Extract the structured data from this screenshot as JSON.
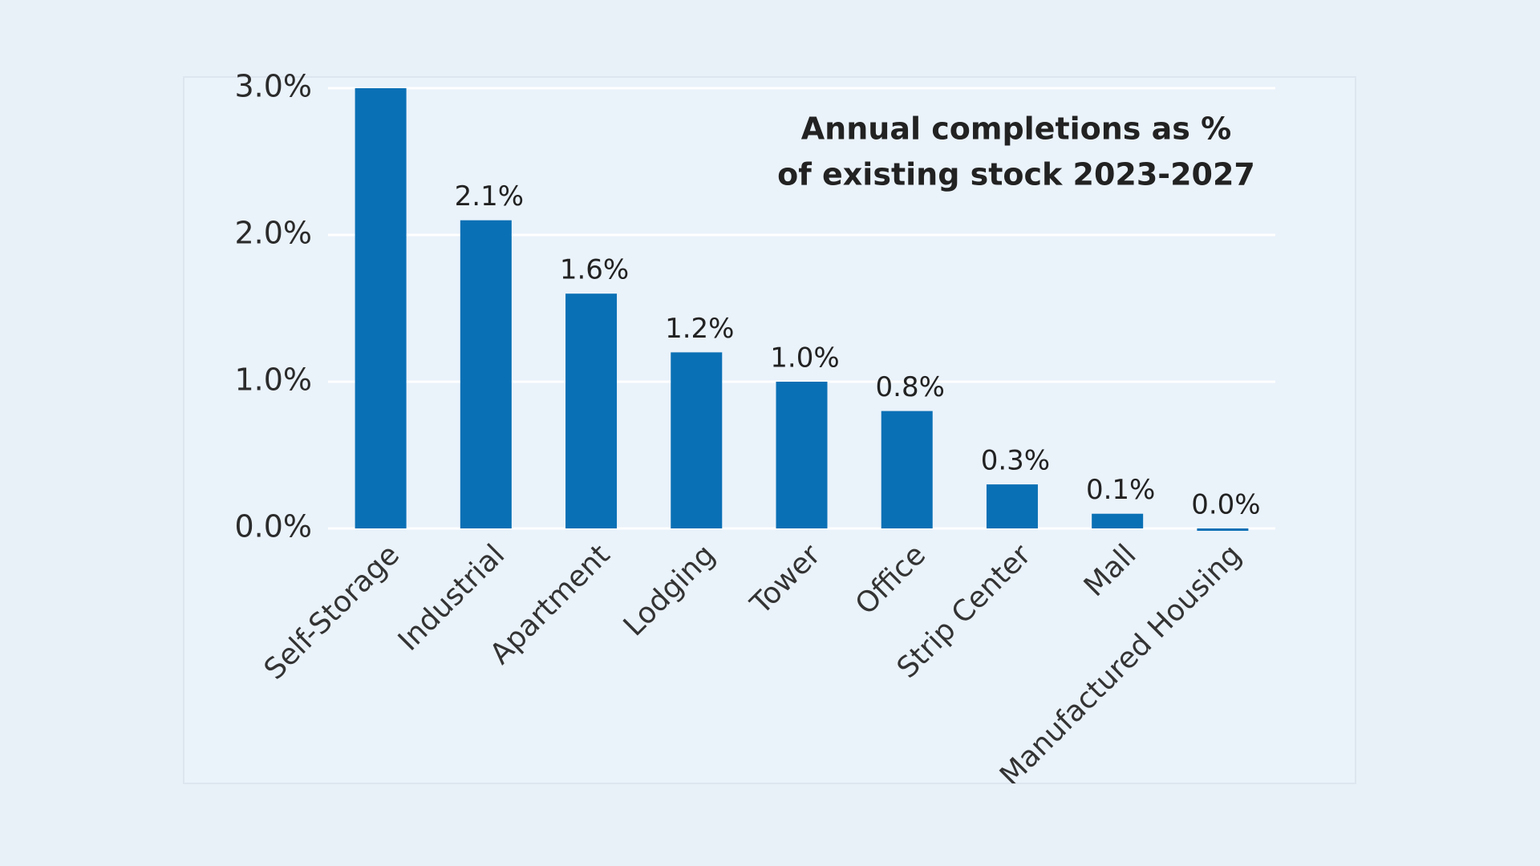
{
  "chart_data": {
    "type": "bar",
    "title": [
      "Annual completions as %",
      "of existing stock 2023-2027"
    ],
    "categories": [
      "Self-Storage",
      "Industrial",
      "Apartment",
      "Lodging",
      "Tower",
      "Office",
      "Strip Center",
      "Mall",
      "Manufactured Housing"
    ],
    "values": [
      3.0,
      2.1,
      1.6,
      1.2,
      1.0,
      0.8,
      0.3,
      0.1,
      0.0
    ],
    "value_labels": [
      null,
      "2.1%",
      "1.6%",
      "1.2%",
      "1.0%",
      "0.8%",
      "0.3%",
      "0.1%",
      "0.0%"
    ],
    "color": "#0a70b5",
    "ylim": [
      0,
      3
    ],
    "yticks": [
      {
        "value": 0,
        "label": "0.0%"
      },
      {
        "value": 1,
        "label": "1.0%"
      },
      {
        "value": 2,
        "label": "2.0%"
      },
      {
        "value": 3,
        "label": "3.0%"
      }
    ],
    "grid": true
  }
}
